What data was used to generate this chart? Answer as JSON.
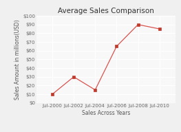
{
  "title": "Average Sales Comparison",
  "xlabel": "Sales Across Years",
  "ylabel": "Sales Amount in millions(USD)",
  "x_labels": [
    "Jul-2000",
    "Jul-2002",
    "Jul-2004",
    "Jul-2006",
    "Jul-2008",
    "Jul-2010"
  ],
  "x_values": [
    2000,
    2002,
    2004,
    2006,
    2008,
    2010
  ],
  "y_values": [
    10,
    30,
    15,
    65,
    90,
    85
  ],
  "ylim": [
    0,
    100
  ],
  "y_ticks": [
    0,
    10,
    20,
    30,
    40,
    50,
    60,
    70,
    80,
    90,
    100
  ],
  "y_tick_labels": [
    "$0",
    "$10",
    "$20",
    "$30",
    "$40",
    "$50",
    "$60",
    "$70",
    "$80",
    "$90",
    "$100"
  ],
  "line_color": "#d9534f",
  "marker_color": "#c0392b",
  "bg_color": "#f0f0f0",
  "plot_bg_color": "#f8f8f8",
  "grid_color": "#ffffff",
  "title_fontsize": 7.5,
  "label_fontsize": 5.5,
  "tick_fontsize": 5
}
